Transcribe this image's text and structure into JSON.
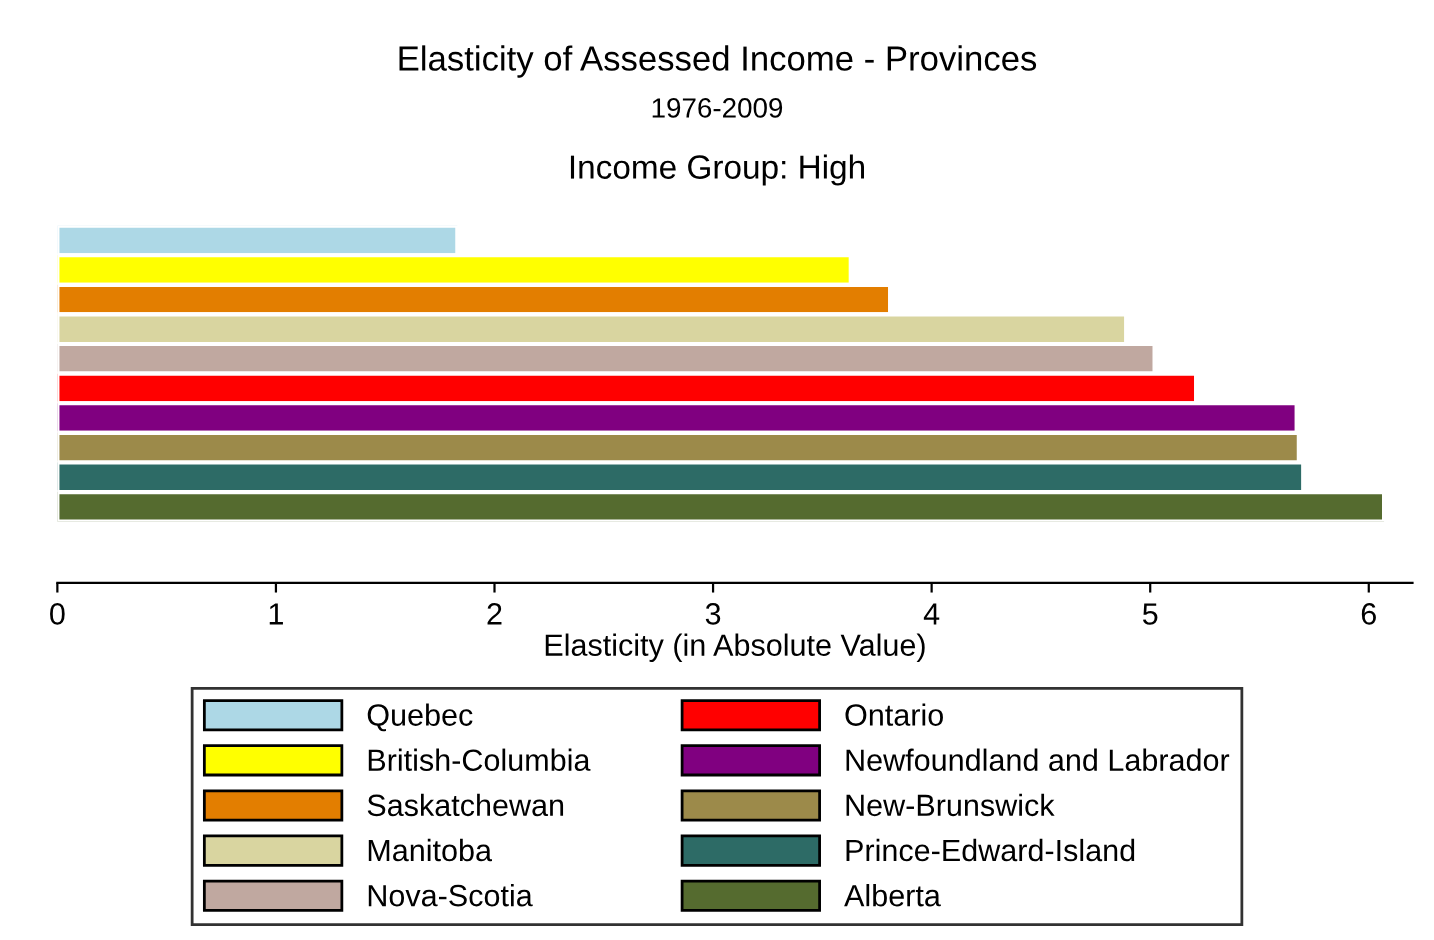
{
  "chart_data": {
    "type": "bar",
    "orientation": "horizontal",
    "title": "Elasticity of Assessed Income - Provinces",
    "subtitle": "1976-2009",
    "annotations": [
      "Income Group: High"
    ],
    "xlabel": "Elasticity (in Absolute Value)",
    "categories": [
      null
    ],
    "series": [
      {
        "name": "Quebec",
        "color": "#add8e6",
        "values": [
          1.83
        ]
      },
      {
        "name": "British-Columbia",
        "color": "#ffff00",
        "values": [
          3.63
        ]
      },
      {
        "name": "Saskatchewan",
        "color": "#e37e00",
        "values": [
          3.81
        ]
      },
      {
        "name": "Manitoba",
        "color": "#d9d5a0",
        "values": [
          4.89
        ]
      },
      {
        "name": "Nova-Scotia",
        "color": "#c0a8a0",
        "values": [
          5.02
        ]
      },
      {
        "name": "Ontario",
        "color": "#ff0000",
        "values": [
          5.21
        ]
      },
      {
        "name": "Newfoundland and Labrador",
        "color": "#800080",
        "values": [
          5.67
        ]
      },
      {
        "name": "New-Brunswick",
        "color": "#9c8a4a",
        "values": [
          5.68
        ]
      },
      {
        "name": "Prince-Edward-Island",
        "color": "#2d6b66",
        "values": [
          5.7
        ]
      },
      {
        "name": "Alberta",
        "color": "#556b2f",
        "values": [
          6.07
        ]
      }
    ],
    "xlim": [
      0,
      6.2
    ],
    "xticks": [
      0,
      1,
      2,
      3,
      4,
      5,
      6
    ],
    "grid": false,
    "legend": "bottom"
  }
}
